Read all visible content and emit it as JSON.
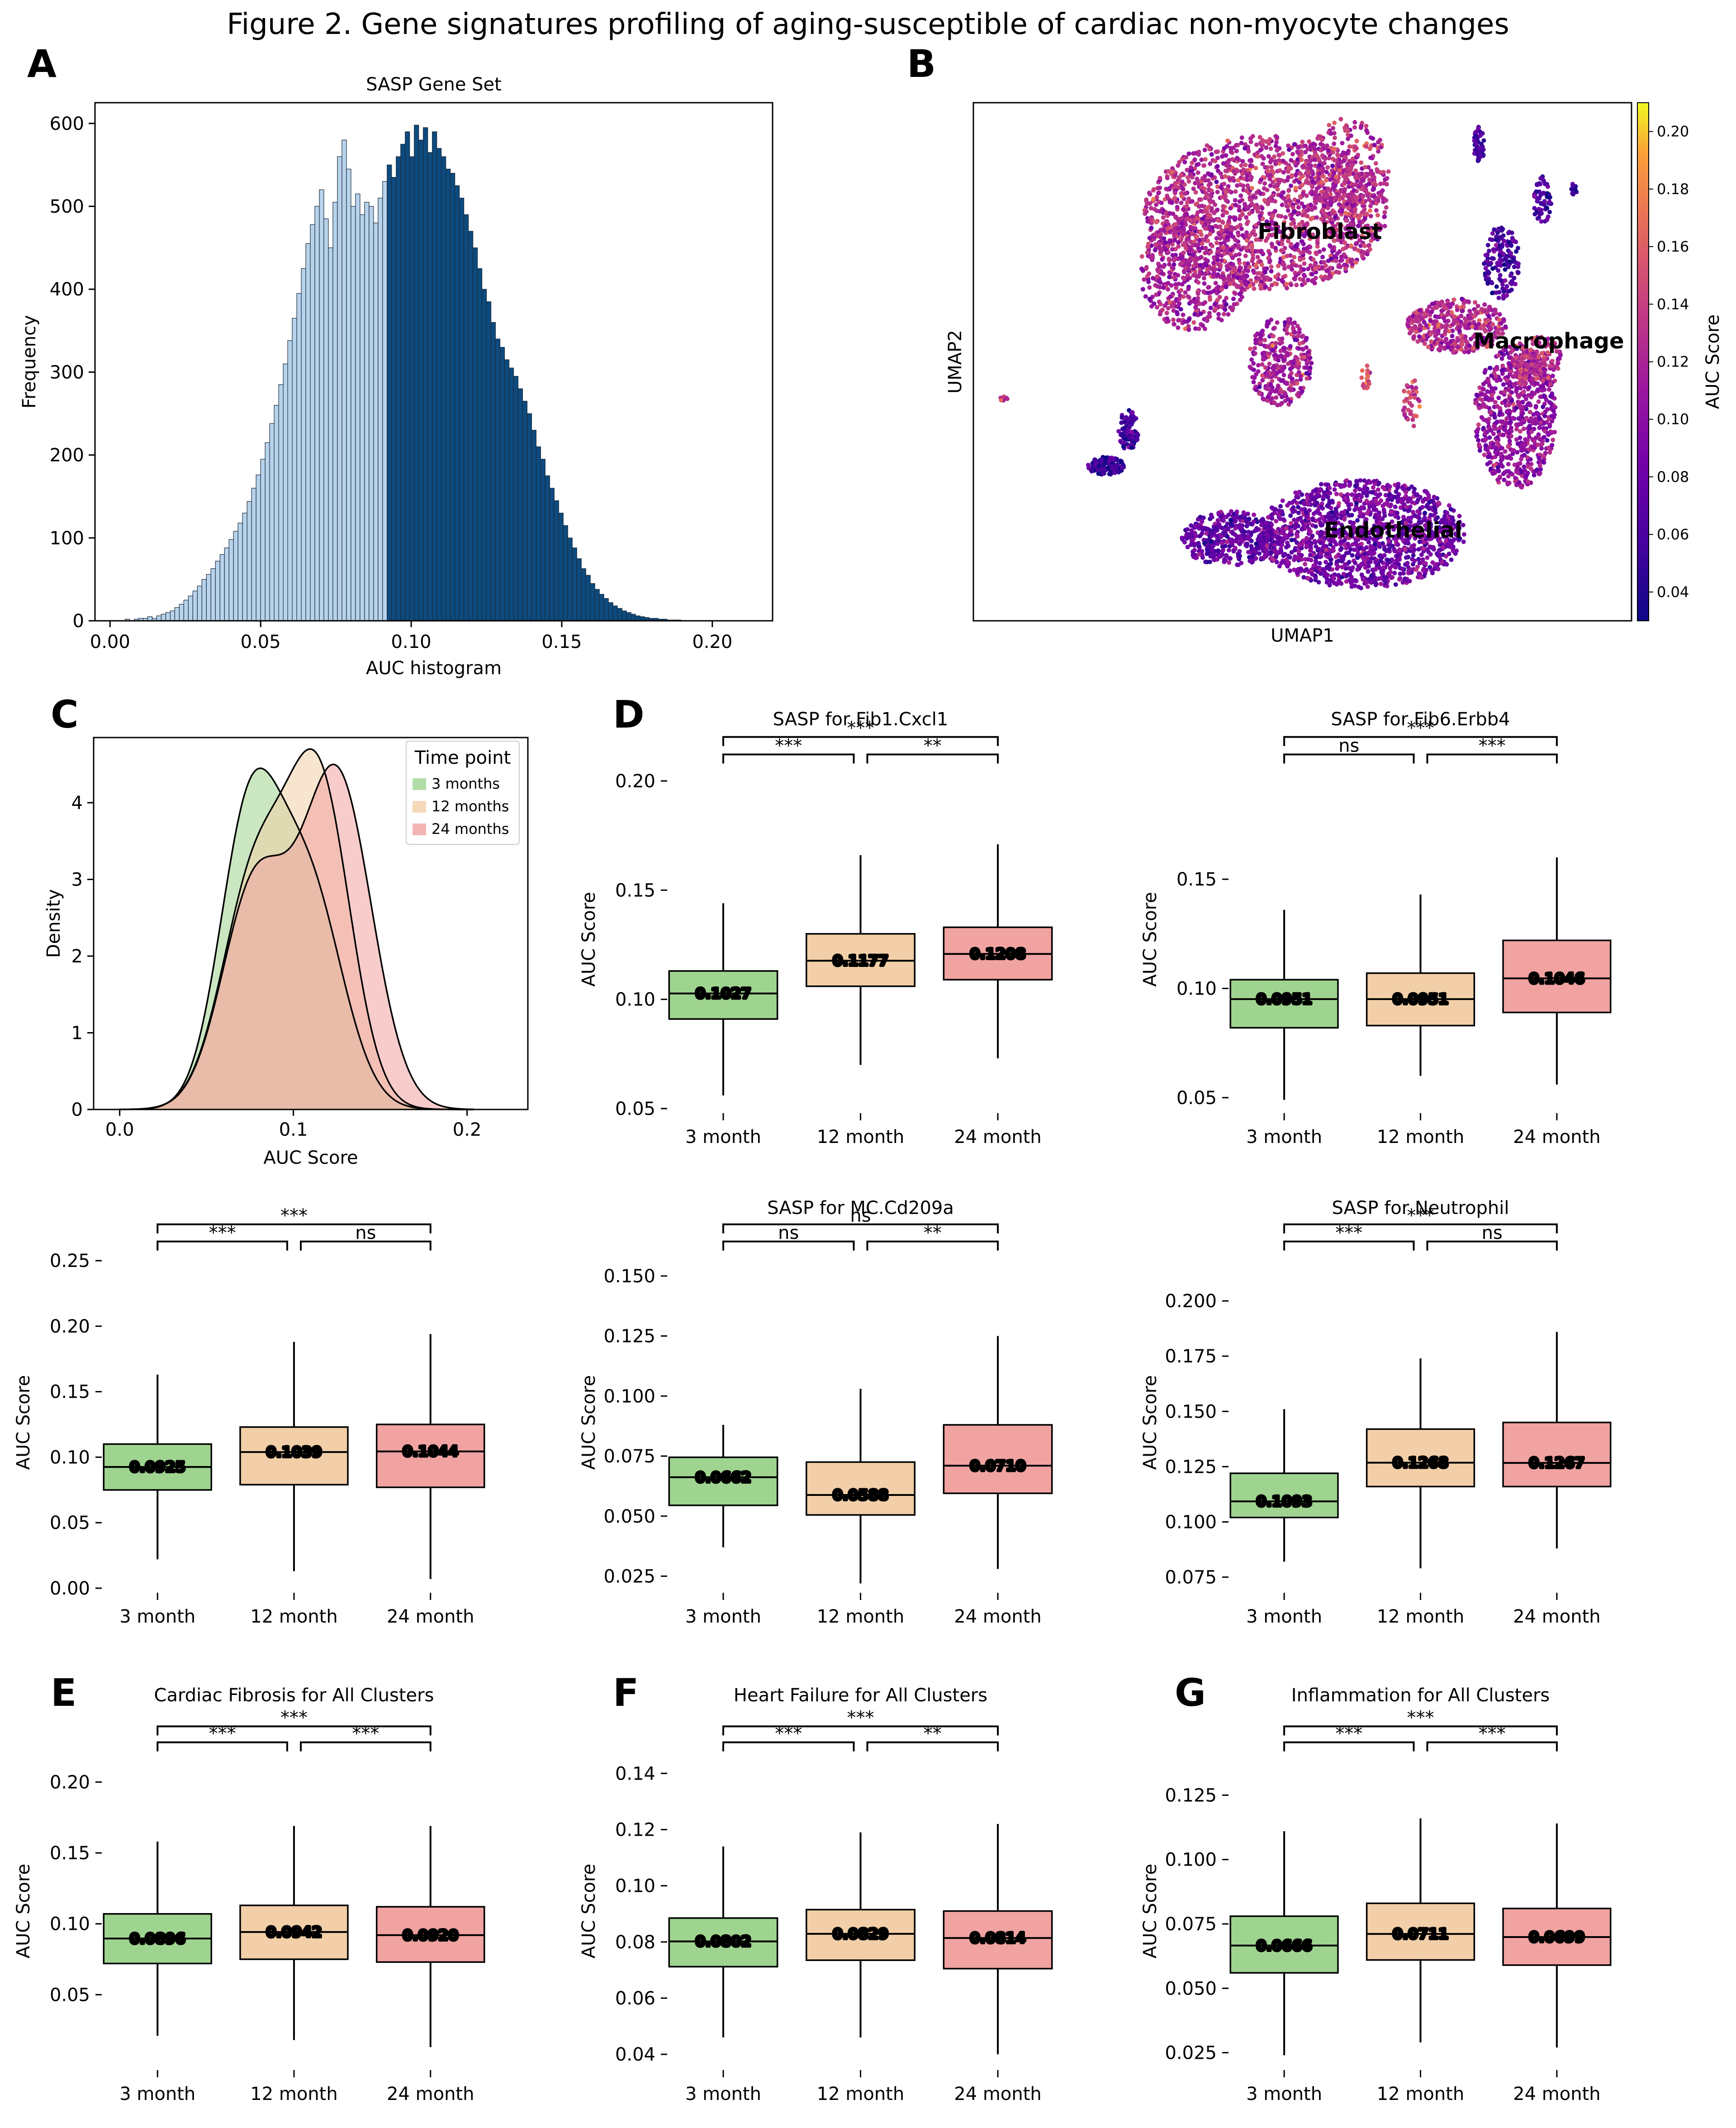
{
  "figure_title": "Figure 2. Gene signatures profiling of aging-susceptible of cardiac non-myocyte changes",
  "panel_letters": [
    "A",
    "B",
    "C",
    "D",
    "E",
    "F",
    "G"
  ],
  "colors": {
    "light_blue": "#b7d3ec",
    "dark_blue": "#0d4a7e",
    "green": "#9fd490",
    "peach": "#f2cfa8",
    "salmon": "#f0a3a1"
  },
  "chart_data": [
    {
      "id": "A",
      "type": "bar",
      "title": "SASP Gene Set",
      "xlabel": "AUC histogram",
      "ylabel": "Frequency",
      "xlim": [
        -0.005,
        0.22
      ],
      "ylim": [
        0,
        625
      ],
      "xticks": [
        "0.00",
        "0.05",
        "0.10",
        "0.15",
        "0.20"
      ],
      "yticks": [
        "0",
        "100",
        "200",
        "300",
        "400",
        "500",
        "600"
      ],
      "threshold": 0.091,
      "bin_start": 0.005,
      "bin_width": 0.0015,
      "counts": [
        2,
        0,
        2,
        3,
        3,
        5,
        3,
        6,
        8,
        10,
        12,
        16,
        20,
        25,
        30,
        36,
        42,
        50,
        56,
        63,
        72,
        80,
        88,
        98,
        108,
        118,
        130,
        144,
        160,
        176,
        195,
        215,
        238,
        260,
        285,
        310,
        338,
        365,
        395,
        425,
        455,
        478,
        500,
        520,
        485,
        450,
        505,
        560,
        580,
        545,
        500,
        515,
        490,
        505,
        500,
        480,
        510,
        530,
        550,
        535,
        560,
        575,
        590,
        560,
        598,
        580,
        595,
        565,
        590,
        570,
        560,
        545,
        540,
        525,
        510,
        490,
        470,
        450,
        425,
        400,
        385,
        360,
        340,
        330,
        315,
        305,
        295,
        280,
        265,
        250,
        230,
        210,
        195,
        175,
        160,
        145,
        130,
        115,
        100,
        88,
        75,
        63,
        55,
        45,
        38,
        32,
        27,
        22,
        18,
        15,
        12,
        10,
        8,
        6,
        5,
        4,
        3,
        3,
        2,
        2,
        1,
        1,
        1
      ]
    },
    {
      "id": "B",
      "type": "scatter",
      "xlabel": "UMAP1",
      "ylabel": "UMAP2",
      "colorbar_label": "AUC Score",
      "colorbar_ticks": [
        "0.04",
        "0.06",
        "0.08",
        "0.10",
        "0.12",
        "0.14",
        "0.16",
        "0.18",
        "0.20"
      ],
      "colorbar_range": [
        0.03,
        0.21
      ],
      "clusters": [
        {
          "name": "Fibroblast",
          "mean_auc": 0.125
        },
        {
          "name": "Macrophage",
          "mean_auc": 0.11
        },
        {
          "name": "Endothelial",
          "mean_auc": 0.085
        }
      ]
    },
    {
      "id": "C",
      "type": "area",
      "xlabel": "AUC Score",
      "ylabel": "Density",
      "xlim": [
        -0.015,
        0.235
      ],
      "ylim": [
        0,
        4.85
      ],
      "xticks": [
        "0.0",
        "0.1",
        "0.2"
      ],
      "yticks": [
        "0",
        "1",
        "2",
        "3",
        "4"
      ],
      "legend_title": "Time point",
      "legend_position": "top-right",
      "series": [
        {
          "name": "3 months",
          "color": "#9fd490",
          "peaks": [
            {
              "mu": 0.074,
              "sd": 0.017,
              "w": 0.55
            },
            {
              "mu": 0.108,
              "sd": 0.02,
              "w": 0.45
            }
          ],
          "peak_height": 4.45
        },
        {
          "name": "12 months",
          "color": "#f2cfa8",
          "peaks": [
            {
              "mu": 0.078,
              "sd": 0.019,
              "w": 0.42
            },
            {
              "mu": 0.115,
              "sd": 0.018,
              "w": 0.58
            }
          ],
          "peak_height": 4.7
        },
        {
          "name": "24 months",
          "color": "#f0a3a1",
          "peaks": [
            {
              "mu": 0.078,
              "sd": 0.019,
              "w": 0.4
            },
            {
              "mu": 0.125,
              "sd": 0.02,
              "w": 0.6
            }
          ],
          "peak_height": 4.5
        }
      ]
    },
    {
      "id": "D1",
      "type": "box",
      "title": "SASP for Fib1.Cxcl1",
      "ylabel": "AUC Score",
      "categories": [
        "3 month",
        "12 month",
        "24 month"
      ],
      "ylim": [
        0.05,
        0.205
      ],
      "yticks": [
        0.05,
        0.1,
        0.15,
        0.2
      ],
      "ytick_labels": [
        "0.05",
        "0.10",
        "0.15",
        "0.20"
      ],
      "boxes": [
        {
          "median": 0.1027,
          "label": "0.1027",
          "q1": 0.091,
          "q3": 0.113,
          "lo": 0.056,
          "hi": 0.144
        },
        {
          "median": 0.1177,
          "label": "0.1177",
          "q1": 0.106,
          "q3": 0.13,
          "lo": 0.07,
          "hi": 0.166
        },
        {
          "median": 0.1208,
          "label": "0.1208",
          "q1": 0.109,
          "q3": 0.133,
          "lo": 0.073,
          "hi": 0.171
        }
      ],
      "significance": [
        {
          "from": 0,
          "to": 1,
          "text": "***",
          "level": 0
        },
        {
          "from": 1,
          "to": 2,
          "text": "**",
          "level": 0
        },
        {
          "from": 0,
          "to": 2,
          "text": "***",
          "level": 1
        }
      ]
    },
    {
      "id": "D2",
      "type": "box",
      "title": "SASP for Fib6.Erbb4",
      "ylabel": "AUC Score",
      "categories": [
        "3 month",
        "12 month",
        "24 month"
      ],
      "ylim": [
        0.045,
        0.2
      ],
      "yticks": [
        0.05,
        0.1,
        0.15
      ],
      "ytick_labels": [
        "0.05",
        "0.10",
        "0.15"
      ],
      "boxes": [
        {
          "median": 0.0951,
          "label": "0.0951",
          "q1": 0.082,
          "q3": 0.104,
          "lo": 0.049,
          "hi": 0.136
        },
        {
          "median": 0.0951,
          "label": "0.0951",
          "q1": 0.083,
          "q3": 0.107,
          "lo": 0.06,
          "hi": 0.143
        },
        {
          "median": 0.1046,
          "label": "0.1046",
          "q1": 0.089,
          "q3": 0.122,
          "lo": 0.056,
          "hi": 0.16
        }
      ],
      "significance": [
        {
          "from": 0,
          "to": 1,
          "text": "ns",
          "level": 0
        },
        {
          "from": 1,
          "to": 2,
          "text": "***",
          "level": 0
        },
        {
          "from": 0,
          "to": 2,
          "text": "***",
          "level": 1
        }
      ]
    },
    {
      "id": "D3",
      "type": "box",
      "title": "",
      "ylabel": "AUC Score",
      "categories": [
        "3 month",
        "12 month",
        "24 month"
      ],
      "ylim": [
        0.0,
        0.253
      ],
      "yticks": [
        0.0,
        0.05,
        0.1,
        0.15,
        0.2,
        0.25
      ],
      "ytick_labels": [
        "0.00",
        "0.05",
        "0.10",
        "0.15",
        "0.20",
        "0.25"
      ],
      "boxes": [
        {
          "median": 0.0925,
          "label": "0.0925",
          "q1": 0.075,
          "q3": 0.11,
          "lo": 0.022,
          "hi": 0.163
        },
        {
          "median": 0.1039,
          "label": "0.1039",
          "q1": 0.079,
          "q3": 0.123,
          "lo": 0.013,
          "hi": 0.188
        },
        {
          "median": 0.1044,
          "label": "0.1044",
          "q1": 0.077,
          "q3": 0.125,
          "lo": 0.007,
          "hi": 0.194
        }
      ],
      "significance": [
        {
          "from": 0,
          "to": 1,
          "text": "***",
          "level": 0
        },
        {
          "from": 1,
          "to": 2,
          "text": "ns",
          "level": 0
        },
        {
          "from": 0,
          "to": 2,
          "text": "***",
          "level": 1
        }
      ]
    },
    {
      "id": "D4",
      "type": "box",
      "title": "SASP for MC.Cd209a",
      "ylabel": "AUC Score",
      "categories": [
        "3 month",
        "12 month",
        "24 month"
      ],
      "ylim": [
        0.02,
        0.158
      ],
      "yticks": [
        0.025,
        0.05,
        0.075,
        0.1,
        0.125,
        0.15
      ],
      "ytick_labels": [
        "0.025",
        "0.050",
        "0.075",
        "0.100",
        "0.125",
        "0.150"
      ],
      "boxes": [
        {
          "median": 0.0662,
          "label": "0.0662",
          "q1": 0.0545,
          "q3": 0.0745,
          "lo": 0.037,
          "hi": 0.088
        },
        {
          "median": 0.0588,
          "label": "0.0588",
          "q1": 0.0505,
          "q3": 0.0725,
          "lo": 0.022,
          "hi": 0.103
        },
        {
          "median": 0.071,
          "label": "0.0710",
          "q1": 0.0595,
          "q3": 0.088,
          "lo": 0.028,
          "hi": 0.125
        }
      ],
      "significance": [
        {
          "from": 0,
          "to": 1,
          "text": "ns",
          "level": 0
        },
        {
          "from": 1,
          "to": 2,
          "text": "**",
          "level": 0
        },
        {
          "from": 0,
          "to": 2,
          "text": "ns",
          "level": 1
        }
      ]
    },
    {
      "id": "D5",
      "type": "box",
      "title": "SASP for Neutrophil",
      "ylabel": "AUC Score",
      "categories": [
        "3 month",
        "12 month",
        "24 month"
      ],
      "ylim": [
        0.07,
        0.22
      ],
      "yticks": [
        0.075,
        0.1,
        0.125,
        0.15,
        0.175,
        0.2
      ],
      "ytick_labels": [
        "0.075",
        "0.100",
        "0.125",
        "0.150",
        "0.175",
        "0.200"
      ],
      "boxes": [
        {
          "median": 0.1093,
          "label": "0.1093",
          "q1": 0.102,
          "q3": 0.122,
          "lo": 0.082,
          "hi": 0.151
        },
        {
          "median": 0.1268,
          "label": "0.1268",
          "q1": 0.116,
          "q3": 0.142,
          "lo": 0.079,
          "hi": 0.174
        },
        {
          "median": 0.1267,
          "label": "0.1267",
          "q1": 0.116,
          "q3": 0.145,
          "lo": 0.088,
          "hi": 0.186
        }
      ],
      "significance": [
        {
          "from": 0,
          "to": 1,
          "text": "***",
          "level": 0
        },
        {
          "from": 1,
          "to": 2,
          "text": "ns",
          "level": 0
        },
        {
          "from": 0,
          "to": 2,
          "text": "***",
          "level": 1
        }
      ]
    },
    {
      "id": "E",
      "type": "box",
      "title": "Cardiac Fibrosis for All Clusters",
      "ylabel": "AUC Score",
      "categories": [
        "3 month",
        "12 month",
        "24 month"
      ],
      "ylim": [
        0.0,
        0.218
      ],
      "yticks": [
        0.05,
        0.1,
        0.15,
        0.2
      ],
      "ytick_labels": [
        "0.05",
        "0.10",
        "0.15",
        "0.20"
      ],
      "boxes": [
        {
          "median": 0.0896,
          "label": "0.0896",
          "q1": 0.072,
          "q3": 0.107,
          "lo": 0.021,
          "hi": 0.158
        },
        {
          "median": 0.0942,
          "label": "0.0942",
          "q1": 0.075,
          "q3": 0.113,
          "lo": 0.018,
          "hi": 0.169
        },
        {
          "median": 0.092,
          "label": "0.0920",
          "q1": 0.073,
          "q3": 0.112,
          "lo": 0.013,
          "hi": 0.169
        }
      ],
      "significance": [
        {
          "from": 0,
          "to": 1,
          "text": "***",
          "level": 0
        },
        {
          "from": 1,
          "to": 2,
          "text": "***",
          "level": 0
        },
        {
          "from": 0,
          "to": 2,
          "text": "***",
          "level": 1
        }
      ]
    },
    {
      "id": "F",
      "type": "box",
      "title": "Heart Failure for All Clusters",
      "ylabel": "AUC Score",
      "categories": [
        "3 month",
        "12 month",
        "24 month"
      ],
      "ylim": [
        0.036,
        0.146
      ],
      "yticks": [
        0.04,
        0.06,
        0.08,
        0.1,
        0.12,
        0.14
      ],
      "ytick_labels": [
        "0.04",
        "0.06",
        "0.08",
        "0.10",
        "0.12",
        "0.14"
      ],
      "boxes": [
        {
          "median": 0.0802,
          "label": "0.0802",
          "q1": 0.0712,
          "q3": 0.0885,
          "lo": 0.046,
          "hi": 0.114
        },
        {
          "median": 0.0829,
          "label": "0.0829",
          "q1": 0.0735,
          "q3": 0.0915,
          "lo": 0.046,
          "hi": 0.119
        },
        {
          "median": 0.0814,
          "label": "0.0814",
          "q1": 0.0705,
          "q3": 0.091,
          "lo": 0.04,
          "hi": 0.122
        }
      ],
      "significance": [
        {
          "from": 0,
          "to": 1,
          "text": "***",
          "level": 0
        },
        {
          "from": 1,
          "to": 2,
          "text": "**",
          "level": 0
        },
        {
          "from": 0,
          "to": 2,
          "text": "***",
          "level": 1
        }
      ]
    },
    {
      "id": "G",
      "type": "box",
      "title": "Inflammation for All Clusters",
      "ylabel": "AUC Score",
      "categories": [
        "3 month",
        "12 month",
        "24 month"
      ],
      "ylim": [
        0.02,
        0.14
      ],
      "yticks": [
        0.025,
        0.05,
        0.075,
        0.1,
        0.125
      ],
      "ytick_labels": [
        "0.025",
        "0.050",
        "0.075",
        "0.100",
        "0.125"
      ],
      "boxes": [
        {
          "median": 0.0666,
          "label": "0.0666",
          "q1": 0.056,
          "q3": 0.078,
          "lo": 0.024,
          "hi": 0.111
        },
        {
          "median": 0.0711,
          "label": "0.0711",
          "q1": 0.061,
          "q3": 0.083,
          "lo": 0.029,
          "hi": 0.116
        },
        {
          "median": 0.0699,
          "label": "0.0699",
          "q1": 0.059,
          "q3": 0.081,
          "lo": 0.027,
          "hi": 0.114
        }
      ],
      "significance": [
        {
          "from": 0,
          "to": 1,
          "text": "***",
          "level": 0
        },
        {
          "from": 1,
          "to": 2,
          "text": "***",
          "level": 0
        },
        {
          "from": 0,
          "to": 2,
          "text": "***",
          "level": 1
        }
      ]
    }
  ]
}
